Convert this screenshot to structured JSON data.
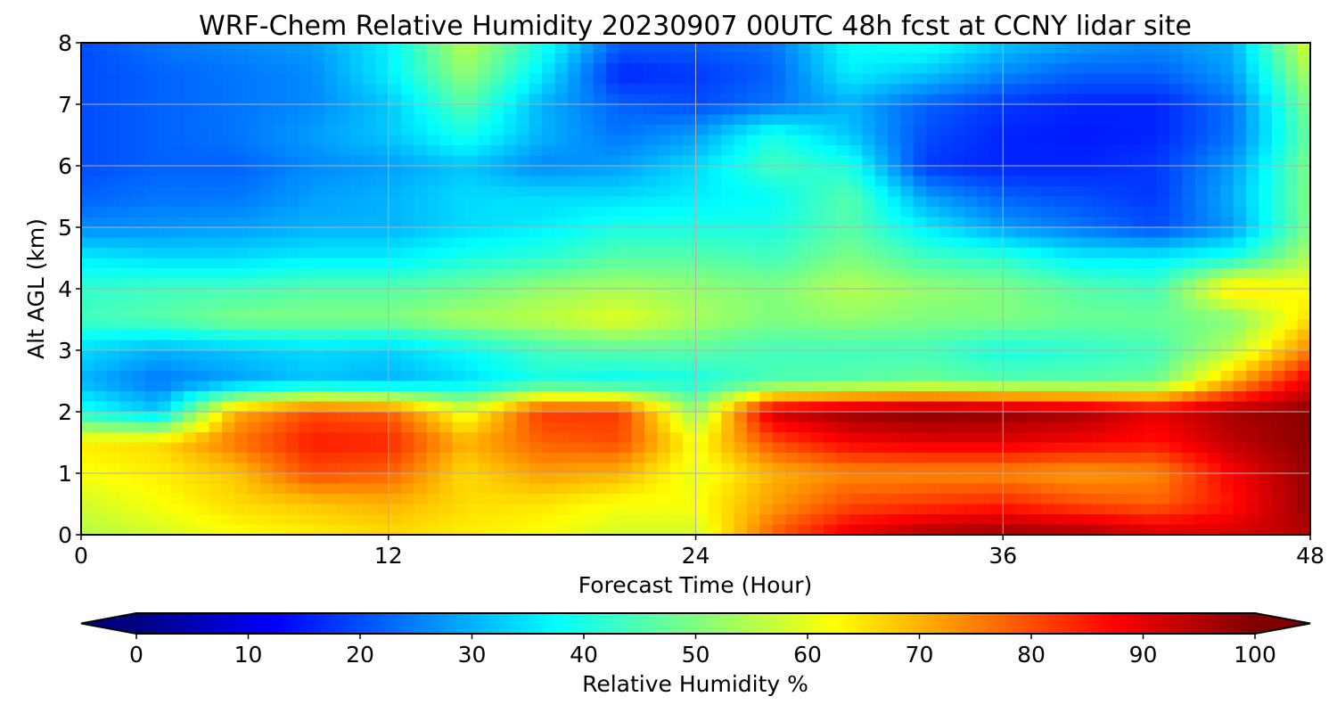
{
  "chart_data": {
    "type": "heatmap",
    "title": "WRF-Chem Relative Humidity 20230907 00UTC 48h fcst at CCNY lidar site",
    "xlabel": "Forecast Time (Hour)",
    "ylabel": "Alt AGL (km)",
    "xlim": [
      0,
      48
    ],
    "ylim": [
      0,
      8
    ],
    "x_ticks": [
      "0",
      "12",
      "24",
      "36",
      "48"
    ],
    "y_ticks": [
      "0",
      "1",
      "2",
      "3",
      "4",
      "5",
      "6",
      "7",
      "8"
    ],
    "grid": true,
    "colorbar": {
      "label": "Relative Humidity %",
      "colormap": "jet",
      "range": [
        0,
        100
      ],
      "ticks": [
        "0",
        "10",
        "20",
        "30",
        "40",
        "50",
        "60",
        "70",
        "80",
        "90",
        "100"
      ],
      "extend": "both",
      "placement": "bottom"
    },
    "x": [
      0,
      3,
      6,
      9,
      12,
      15,
      18,
      21,
      24,
      27,
      30,
      33,
      36,
      39,
      42,
      45,
      48
    ],
    "y": [
      0,
      0.5,
      1,
      1.5,
      2,
      2.5,
      3,
      3.5,
      4,
      4.5,
      5,
      5.5,
      6,
      6.5,
      7,
      7.5,
      8
    ],
    "z": [
      [
        55,
        58,
        62,
        64,
        66,
        64,
        62,
        58,
        58,
        78,
        90,
        96,
        98,
        97,
        92,
        92,
        95
      ],
      [
        58,
        62,
        66,
        68,
        70,
        66,
        65,
        62,
        62,
        72,
        80,
        82,
        84,
        80,
        78,
        86,
        98
      ],
      [
        62,
        64,
        68,
        80,
        78,
        66,
        72,
        70,
        60,
        70,
        74,
        74,
        74,
        72,
        74,
        88,
        98
      ],
      [
        64,
        66,
        76,
        85,
        84,
        70,
        78,
        80,
        62,
        80,
        88,
        90,
        90,
        88,
        86,
        94,
        99
      ],
      [
        40,
        32,
        70,
        80,
        78,
        60,
        82,
        82,
        52,
        92,
        97,
        99,
        98,
        96,
        90,
        96,
        99
      ],
      [
        30,
        24,
        28,
        32,
        30,
        34,
        40,
        38,
        40,
        45,
        46,
        48,
        46,
        46,
        48,
        70,
        90
      ],
      [
        34,
        30,
        32,
        34,
        33,
        38,
        44,
        46,
        46,
        44,
        44,
        44,
        40,
        42,
        44,
        56,
        75
      ],
      [
        44,
        46,
        50,
        50,
        50,
        54,
        56,
        60,
        54,
        50,
        52,
        50,
        50,
        48,
        48,
        50,
        66
      ],
      [
        42,
        44,
        44,
        46,
        46,
        48,
        52,
        54,
        52,
        50,
        55,
        52,
        50,
        46,
        44,
        66,
        62
      ],
      [
        36,
        34,
        34,
        36,
        36,
        40,
        42,
        46,
        46,
        44,
        50,
        44,
        42,
        36,
        36,
        40,
        55
      ],
      [
        26,
        27,
        28,
        30,
        30,
        34,
        36,
        40,
        40,
        40,
        46,
        36,
        28,
        24,
        20,
        28,
        50
      ],
      [
        22,
        24,
        24,
        28,
        30,
        34,
        34,
        34,
        36,
        38,
        46,
        28,
        22,
        20,
        18,
        30,
        50
      ],
      [
        20,
        22,
        22,
        26,
        28,
        32,
        26,
        28,
        34,
        44,
        40,
        18,
        16,
        16,
        18,
        28,
        50
      ],
      [
        20,
        22,
        24,
        28,
        32,
        40,
        30,
        24,
        28,
        40,
        32,
        20,
        16,
        15,
        16,
        24,
        48
      ],
      [
        20,
        22,
        24,
        26,
        32,
        46,
        30,
        22,
        20,
        24,
        30,
        22,
        18,
        16,
        16,
        24,
        50
      ],
      [
        20,
        22,
        24,
        26,
        36,
        52,
        36,
        16,
        18,
        22,
        36,
        32,
        26,
        22,
        22,
        28,
        55
      ],
      [
        20,
        24,
        26,
        28,
        36,
        56,
        40,
        22,
        22,
        24,
        38,
        40,
        32,
        28,
        26,
        30,
        60
      ]
    ]
  }
}
